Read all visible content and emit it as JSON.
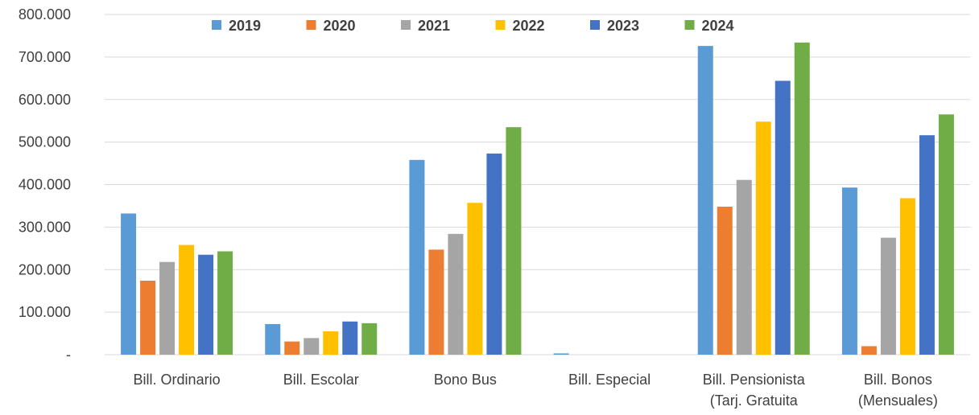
{
  "chart_data": {
    "type": "bar",
    "title": "",
    "xlabel": "",
    "ylabel": "",
    "ylim": [
      0,
      800000
    ],
    "y_ticks": [
      0,
      100000,
      200000,
      300000,
      400000,
      500000,
      600000,
      700000,
      800000
    ],
    "y_tick_labels": [
      "-",
      "100.000",
      "200.000",
      "300.000",
      "400.000",
      "500.000",
      "600.000",
      "700.000",
      "800.000"
    ],
    "grid": true,
    "legend_position": "top",
    "categories": [
      [
        "Bill. Ordinario"
      ],
      [
        "Bill. Escolar"
      ],
      [
        "Bono Bus"
      ],
      [
        "Bill. Especial"
      ],
      [
        "Bill. Pensionista",
        "(Tarj. Gratuita"
      ],
      [
        "Bill. Bonos",
        "(Mensuales)"
      ]
    ],
    "series": [
      {
        "name": "2019",
        "color": "#5b9bd5",
        "values": [
          332000,
          72000,
          458000,
          3000,
          726000,
          393000
        ]
      },
      {
        "name": "2020",
        "color": "#ed7d31",
        "values": [
          174000,
          31000,
          247000,
          0,
          348000,
          20000
        ]
      },
      {
        "name": "2021",
        "color": "#a5a5a5",
        "values": [
          218000,
          39000,
          284000,
          0,
          411000,
          275000
        ]
      },
      {
        "name": "2022",
        "color": "#ffc000",
        "values": [
          258000,
          55000,
          357000,
          0,
          548000,
          368000
        ]
      },
      {
        "name": "2023",
        "color": "#4472c4",
        "values": [
          235000,
          78000,
          473000,
          0,
          644000,
          516000
        ]
      },
      {
        "name": "2024",
        "color": "#70ad47",
        "values": [
          243000,
          74000,
          535000,
          0,
          734000,
          565000
        ]
      }
    ]
  }
}
